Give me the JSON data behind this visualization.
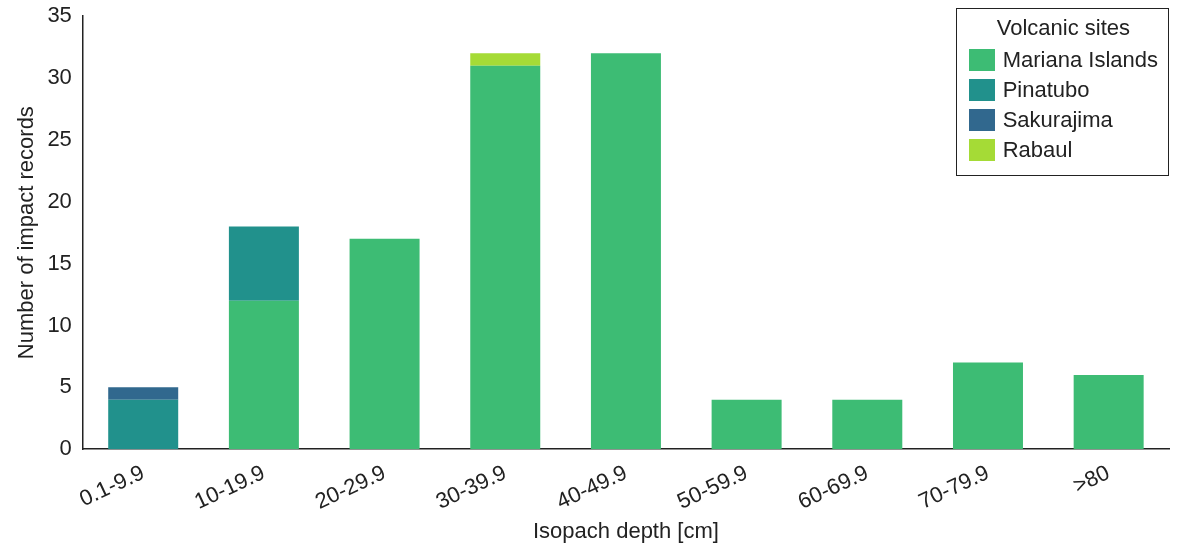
{
  "chart_data": {
    "type": "bar",
    "stacked": true,
    "xlabel": "Isopach depth [cm]",
    "ylabel": "Number of impact records",
    "legend_title": "Volcanic sites",
    "legend": "top right",
    "grid": false,
    "categories": [
      "0.1-9.9",
      "10-19.9",
      "20-29.9",
      "30-39.9",
      "40-49.9",
      "50-59.9",
      "60-69.9",
      "70-79.9",
      ">80"
    ],
    "ylim": [
      0,
      35
    ],
    "yticks": [
      0,
      5,
      10,
      15,
      20,
      25,
      30,
      35
    ],
    "series": [
      {
        "name": "Mariana Islands",
        "color": "#3dbc74",
        "values": [
          0,
          12,
          17,
          31,
          32,
          4,
          4,
          7,
          6
        ]
      },
      {
        "name": "Pinatubo",
        "color": "#21918c",
        "values": [
          4,
          6,
          0,
          0,
          0,
          0,
          0,
          0,
          0
        ]
      },
      {
        "name": "Sakurajima",
        "color": "#31688e",
        "values": [
          1,
          0,
          0,
          0,
          0,
          0,
          0,
          0,
          0
        ]
      },
      {
        "name": "Rabaul",
        "color": "#a5db36",
        "values": [
          0,
          0,
          0,
          1,
          0,
          0,
          0,
          0,
          0
        ]
      }
    ]
  }
}
